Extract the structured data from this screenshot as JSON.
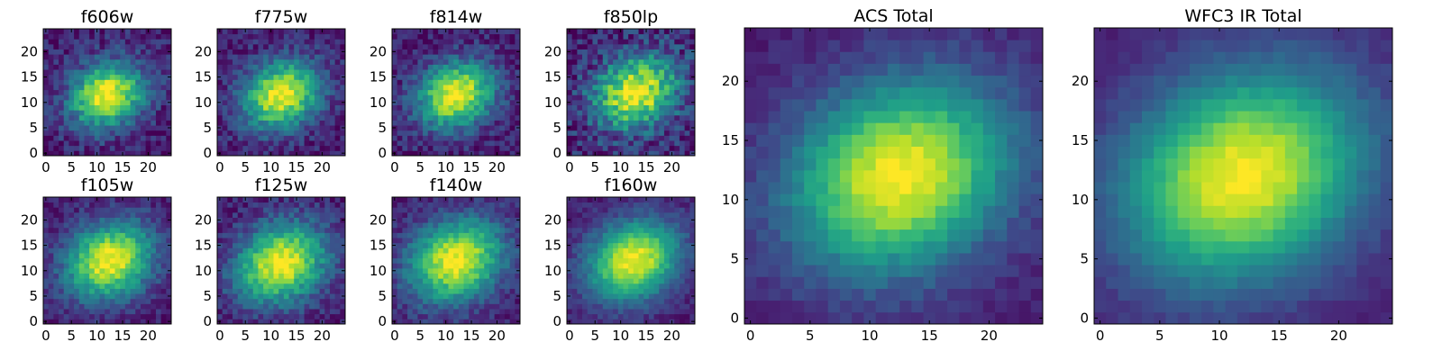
{
  "chart_data": [
    {
      "type": "heatmap",
      "title": "f606w",
      "xlim": [
        0,
        24
      ],
      "ylim": [
        0,
        24
      ],
      "xticks": [
        0,
        5,
        10,
        15,
        20
      ],
      "yticks": [
        0,
        5,
        10,
        15,
        20
      ],
      "grid": false,
      "colormap": "viridis",
      "peak": {
        "x": 12,
        "y": 11.5
      },
      "spread": 4.6,
      "noise": 0.26,
      "seed": 11
    },
    {
      "type": "heatmap",
      "title": "f775w",
      "xlim": [
        0,
        24
      ],
      "ylim": [
        0,
        24
      ],
      "xticks": [
        0,
        5,
        10,
        15,
        20
      ],
      "yticks": [
        0,
        5,
        10,
        15,
        20
      ],
      "grid": false,
      "colormap": "viridis",
      "peak": {
        "x": 12,
        "y": 11.5
      },
      "spread": 4.8,
      "noise": 0.24,
      "seed": 23
    },
    {
      "type": "heatmap",
      "title": "f814w",
      "xlim": [
        0,
        24
      ],
      "ylim": [
        0,
        24
      ],
      "xticks": [
        0,
        5,
        10,
        15,
        20
      ],
      "yticks": [
        0,
        5,
        10,
        15,
        20
      ],
      "grid": false,
      "colormap": "viridis",
      "peak": {
        "x": 12,
        "y": 11.5
      },
      "spread": 4.7,
      "noise": 0.25,
      "seed": 37
    },
    {
      "type": "heatmap",
      "title": "f850lp",
      "xlim": [
        0,
        24
      ],
      "ylim": [
        0,
        24
      ],
      "xticks": [
        0,
        5,
        10,
        15,
        20
      ],
      "yticks": [
        0,
        5,
        10,
        15,
        20
      ],
      "grid": false,
      "colormap": "viridis",
      "peak": {
        "x": 13,
        "y": 12
      },
      "spread": 5.2,
      "noise": 0.36,
      "seed": 41
    },
    {
      "type": "heatmap",
      "title": "f105w",
      "xlim": [
        0,
        24
      ],
      "ylim": [
        0,
        24
      ],
      "xticks": [
        0,
        5,
        10,
        15,
        20
      ],
      "yticks": [
        0,
        5,
        10,
        15,
        20
      ],
      "grid": false,
      "colormap": "viridis",
      "peak": {
        "x": 12.5,
        "y": 12
      },
      "spread": 5.4,
      "noise": 0.2,
      "seed": 53
    },
    {
      "type": "heatmap",
      "title": "f125w",
      "xlim": [
        0,
        24
      ],
      "ylim": [
        0,
        24
      ],
      "xticks": [
        0,
        5,
        10,
        15,
        20
      ],
      "yticks": [
        0,
        5,
        10,
        15,
        20
      ],
      "grid": false,
      "colormap": "viridis",
      "peak": {
        "x": 12,
        "y": 11.5
      },
      "spread": 5.6,
      "noise": 0.22,
      "seed": 67
    },
    {
      "type": "heatmap",
      "title": "f140w",
      "xlim": [
        0,
        24
      ],
      "ylim": [
        0,
        24
      ],
      "xticks": [
        0,
        5,
        10,
        15,
        20
      ],
      "yticks": [
        0,
        5,
        10,
        15,
        20
      ],
      "grid": false,
      "colormap": "viridis",
      "peak": {
        "x": 12,
        "y": 12
      },
      "spread": 5.8,
      "noise": 0.2,
      "seed": 71
    },
    {
      "type": "heatmap",
      "title": "f160w",
      "xlim": [
        0,
        24
      ],
      "ylim": [
        0,
        24
      ],
      "xticks": [
        0,
        5,
        10,
        15,
        20
      ],
      "yticks": [
        0,
        5,
        10,
        15,
        20
      ],
      "grid": false,
      "colormap": "viridis",
      "peak": {
        "x": 12.5,
        "y": 12
      },
      "spread": 5.6,
      "noise": 0.15,
      "seed": 83
    },
    {
      "type": "heatmap",
      "title": "ACS Total",
      "xlim": [
        0,
        24
      ],
      "ylim": [
        0,
        24
      ],
      "xticks": [
        0,
        5,
        10,
        15,
        20
      ],
      "yticks": [
        0,
        5,
        10,
        15,
        20
      ],
      "grid": false,
      "colormap": "viridis",
      "peak": {
        "x": 12.5,
        "y": 12
      },
      "spread": 5.8,
      "noise": 0.1,
      "seed": 97
    },
    {
      "type": "heatmap",
      "title": "WFC3 IR Total",
      "xlim": [
        0,
        24
      ],
      "ylim": [
        0,
        24
      ],
      "xticks": [
        0,
        5,
        10,
        15,
        20
      ],
      "yticks": [
        0,
        5,
        10,
        15,
        20
      ],
      "grid": false,
      "colormap": "viridis",
      "peak": {
        "x": 12,
        "y": 12
      },
      "spread": 6.4,
      "noise": 0.07,
      "seed": 101
    }
  ]
}
